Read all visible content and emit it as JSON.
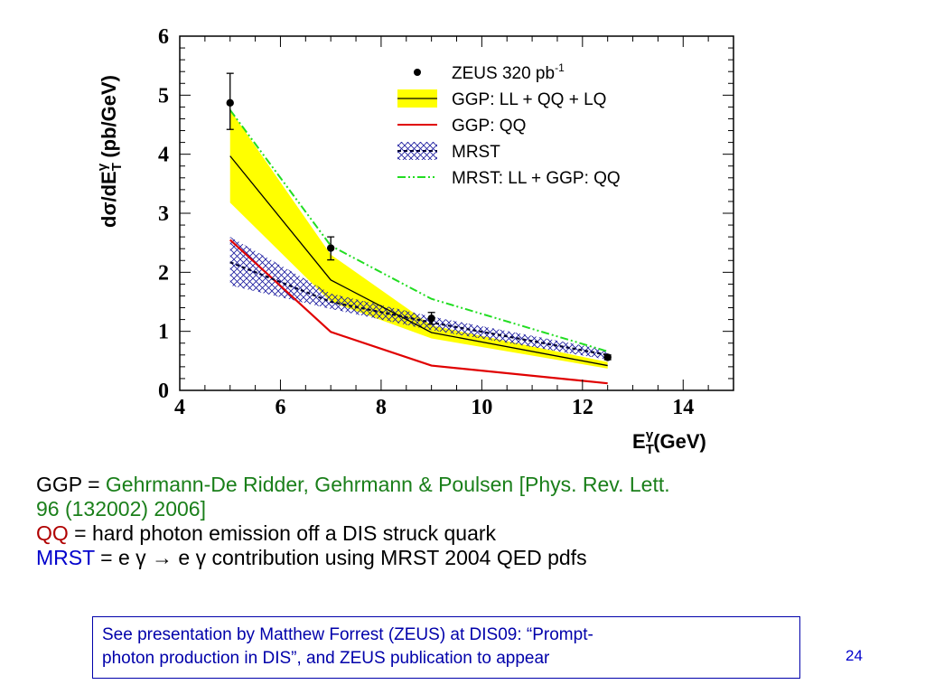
{
  "colors": {
    "band_ggp": "#ffff00",
    "line_ggp_total": "#000000",
    "line_ggp_qq": "#e00000",
    "line_mrst": "#000033",
    "hatch_mrst": "#1a1a9e",
    "line_mrst_ll_ggp_qq": "#22dd22",
    "note_green": "#1a7f1a",
    "note_red": "#b00000",
    "note_blue": "#0000cc"
  },
  "chart_data": {
    "type": "line",
    "xlabel": "E_T^γ (GeV)",
    "ylabel": "dσ/dE_T^γ (pb/GeV)",
    "xlim": [
      4,
      15
    ],
    "ylim": [
      0,
      6
    ],
    "xticks": [
      4,
      6,
      8,
      10,
      12,
      14
    ],
    "yticks": [
      0,
      1,
      2,
      3,
      4,
      5,
      6
    ],
    "legend_position": "top-right",
    "legend": [
      {
        "key": "zeus",
        "text": "ZEUS 320 pb",
        "sup": "-1"
      },
      {
        "key": "ggp_total",
        "text": "GGP: LL + QQ + LQ"
      },
      {
        "key": "ggp_qq",
        "text": "GGP: QQ"
      },
      {
        "key": "mrst",
        "text": "MRST"
      },
      {
        "key": "mrst_ll",
        "text": "MRST: LL + GGP: QQ"
      }
    ],
    "data_points": {
      "name": "ZEUS 320 pb-1",
      "x": [
        5,
        7,
        9,
        12.5
      ],
      "y": [
        4.87,
        2.41,
        1.22,
        0.56
      ],
      "err_up": [
        0.5,
        0.19,
        0.1,
        0.04
      ],
      "err_down": [
        0.45,
        0.2,
        0.1,
        0.04
      ]
    },
    "ggp_total": {
      "name": "GGP: LL + QQ + LQ",
      "x": [
        5,
        7,
        9,
        12.5
      ],
      "y": [
        3.97,
        1.87,
        0.98,
        0.42
      ],
      "band_low": [
        3.18,
        1.5,
        0.88,
        0.37
      ],
      "band_high": [
        4.75,
        2.3,
        1.1,
        0.48
      ]
    },
    "ggp_qq": {
      "name": "GGP: QQ",
      "x": [
        5,
        7,
        9,
        12.5
      ],
      "y": [
        2.55,
        0.99,
        0.42,
        0.12
      ]
    },
    "mrst": {
      "name": "MRST",
      "x": [
        5,
        7,
        9,
        12.5
      ],
      "y": [
        2.17,
        1.5,
        1.15,
        0.6
      ],
      "band_low": [
        1.78,
        1.38,
        1.02,
        0.52
      ],
      "band_high": [
        2.6,
        1.64,
        1.25,
        0.68
      ]
    },
    "mrst_ll": {
      "name": "MRST: LL + GGP: QQ",
      "x": [
        5,
        7,
        9,
        12.5
      ],
      "y": [
        4.75,
        2.45,
        1.55,
        0.66
      ]
    }
  },
  "notes": {
    "line1_prefix": "GGP = ",
    "line1_green": "Gehrmann-De Ridder, Gehrmann & Poulsen [Phys. Rev. Lett.",
    "line2_green": "96 (132002) 2006]",
    "line3_red": "QQ",
    "line3_rest": " = hard photon emission off a DIS struck quark",
    "line4_blue": "MRST",
    "line4_rest": " = e γ → e γ contribution using MRST 2004 QED pdfs"
  },
  "footnote": {
    "line1": "See presentation by Matthew Forrest (ZEUS) at DIS09: “Prompt-",
    "line2": "photon production in DIS”, and ZEUS publication to appear"
  },
  "page_number": "24"
}
